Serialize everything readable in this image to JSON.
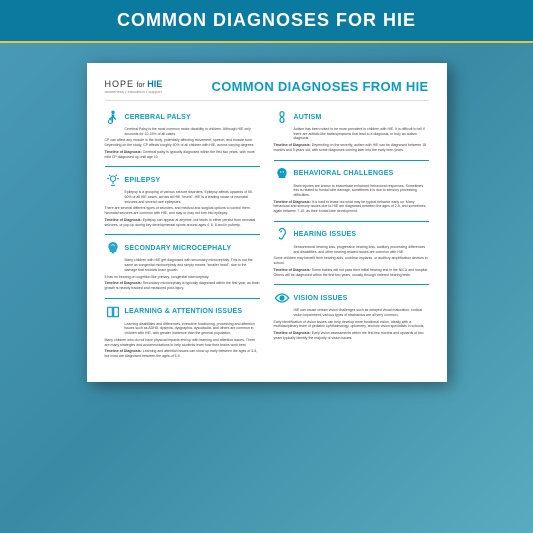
{
  "banner_title": "COMMON DIAGNOSES FOR HIE",
  "logo": {
    "hope": "HOPE",
    "for": "for",
    "hie": "HIE",
    "tagline": "awareness • education • support"
  },
  "doc_title": "COMMON DIAGNOSES FROM HIE",
  "colors": {
    "accent": "#0a9ec4",
    "banner": "#0a7a9e",
    "rule": "#f0c040"
  },
  "left": [
    {
      "title": "CEREBRAL PALSY",
      "intro": "Cerebral Palsy is the most common motor disability in children. Although HIE only accounts for 10-15% of all cases.",
      "body": [
        "CP can affect any muscle in the body, potentially affecting movement, speech, and muscle tone. Depending on the study, CP affects roughly 40% of all children with HIE, across varying degrees."
      ],
      "timeline": "Timeline of Diagnosis: Cerebral palsy is typically diagnosed within the first two years, with more mild CP diagnosed up until age 10."
    },
    {
      "title": "EPILEPSY",
      "intro": "Epilepsy is a grouping of various seizure disorders. Epilepsy affects upwards of 50-60% of all HIE cases, across all HIE \"levels\". HIE is a leading cause of neonatal seizures and several rare epilepsies.",
      "body": [
        "There are several different types of seizures, and medical and surgical options to control them. Neonatal seizures are common with HIE, and may or may not turn into epilepsy."
      ],
      "timeline": "Timeline of Diagnosis: Epilepsy can appear at anytime, but tends to either persist from neonatal seizures, or pop up during key developmental spurts around ages 4, 6, 8 and in puberty."
    },
    {
      "title": "SECONDARY MICROCEPHALY",
      "intro": "Many children with HIE get diagnosed with secondary microcephaly. This is not the same as congenital microcephaly and simply means \"smaller head\", due to the damage that restricts brain growth.",
      "body": [
        "It has no bearing on cognition like primary, congenital microcephaly."
      ],
      "timeline": "Timeline of Diagnosis: Secondary microcephaly is typically diagnosed within the first year, as brain growth is heavily tracked and measured post-injury."
    },
    {
      "title": "LEARNING & ATTENTION ISSUES",
      "intro": "Learning disabilities and differences, executive functioning, processing and attention issues such as ADHD, dyslexia, dysgraphia, dyscalculia, and others are common in children with HIE, with greater incidence than the general population.",
      "body": [
        "Many children who do not have physical impacts end up with learning and attention issues. There are many strategies and accommodations to help students learn how their brains work best."
      ],
      "timeline": "Timeline of Diagnosis: Learning and attention issues can show up early between the ages of 3-5, but most are diagnosed between the ages of 5-9."
    }
  ],
  "right": [
    {
      "title": "AUTISM",
      "intro": "Autism has been noted to be more prevalent in children with HIE. It is difficult to tell if there are autistic-like traits/symptoms that lead to a diagnosis, or truly an autism diagnosis.",
      "body": [],
      "timeline": "Timeline of Diagnosis: Depending on the severity, autism with HIE can be diagnosed between 18 months and 5 years old, with some diagnoses coming later into the early teen years."
    },
    {
      "title": "BEHAVIORAL CHALLENGES",
      "intro": "Brain injuries are known to exacerbate enhanced behavioral responses. Sometimes this is related to frontal lobe damage, sometimes it is due to sensory processing difficulties.",
      "body": [],
      "timeline": "Timeline of Diagnosis: It is hard to tease out what may be typical behavior early on. Many behavioral and sensory issues due to HIE are diagnosed between the ages of 2-5, and sometimes again between 7-10, as their frontal lobe development."
    },
    {
      "title": "HEARING ISSUES",
      "intro": "Sensorineural hearing loss, progressive hearing loss, auditory processing differences and disabilities, and other hearing-related issues are common with HIE.",
      "body": [
        "Some children may benefit from hearing aids, cochlear implants, or auditory amplification devices in school."
      ],
      "timeline": "Timeline of Diagnosis: Some babies will not pass their initial hearing test in the NICU and hospital. Others will be diagnosed within the first two years, usually through ordered hearing tests."
    },
    {
      "title": "VISION ISSUES",
      "intro": "HIE can cause certain vision challenges such as delayed visual maturation, cortical vision impairment, various types of strabismus are all very common.",
      "body": [
        "Early identification of vision issues can help develop more functional vision. Ideally with a multidisciplinary team of pediatric ophthalmology, optometry, and low vision specialists in schools."
      ],
      "timeline": "Timeline of Diagnosis: Early vision assessments within the first few months and upwards of two years typically identify the majority of vision issues."
    }
  ]
}
